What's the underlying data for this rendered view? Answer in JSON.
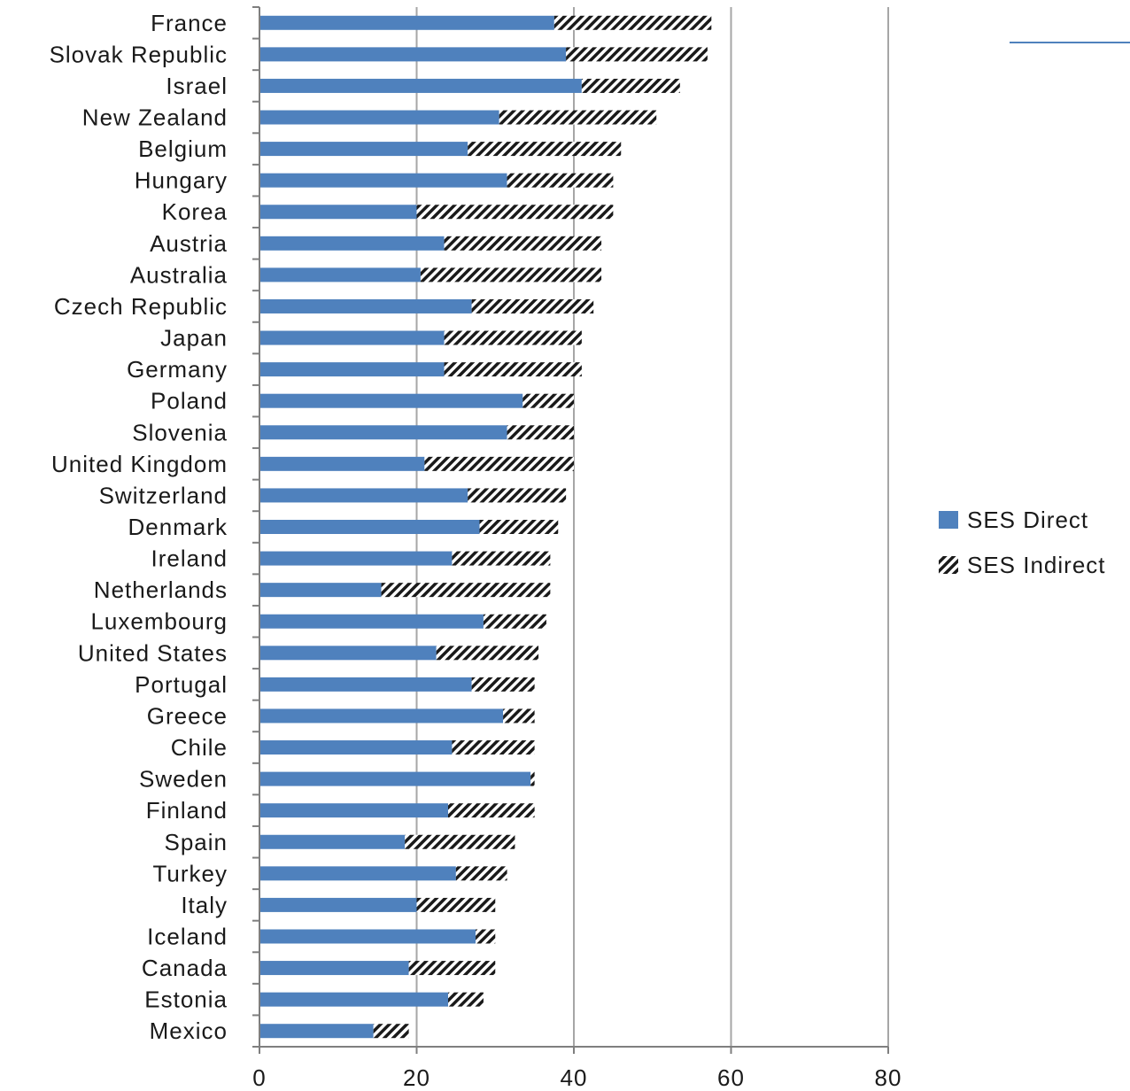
{
  "chart_data": {
    "type": "bar",
    "orientation": "horizontal",
    "stacked": true,
    "categories": [
      "France",
      "Slovak Republic",
      "Israel",
      "New Zealand",
      "Belgium",
      "Hungary",
      "Korea",
      "Austria",
      "Australia",
      "Czech Republic",
      "Japan",
      "Germany",
      "Poland",
      "Slovenia",
      "United Kingdom",
      "Switzerland",
      "Denmark",
      "Ireland",
      "Netherlands",
      "Luxembourg",
      "United States",
      "Portugal",
      "Greece",
      "Chile",
      "Sweden",
      "Finland",
      "Spain",
      "Turkey",
      "Italy",
      "Iceland",
      "Canada",
      "Estonia",
      "Mexico"
    ],
    "series": [
      {
        "name": "SES Direct",
        "color": "#4f81bd",
        "pattern": "solid",
        "values": [
          37.5,
          39.0,
          41.0,
          30.5,
          26.5,
          31.5,
          20.0,
          23.5,
          20.5,
          27.0,
          23.5,
          23.5,
          33.5,
          31.5,
          21.0,
          26.5,
          28.0,
          24.5,
          15.5,
          28.5,
          22.5,
          27.0,
          31.0,
          24.5,
          34.5,
          24.0,
          18.5,
          25.0,
          20.0,
          27.5,
          19.0,
          24.0,
          14.5
        ]
      },
      {
        "name": "SES Indirect",
        "color": "#1a1a1a",
        "pattern": "diagonal-hatch",
        "values": [
          20.0,
          18.0,
          12.5,
          20.0,
          19.5,
          13.5,
          25.0,
          20.0,
          23.0,
          15.5,
          17.5,
          17.5,
          6.5,
          8.5,
          19.0,
          12.5,
          10.0,
          12.5,
          21.5,
          8.0,
          13.0,
          8.0,
          4.0,
          10.5,
          0.5,
          11.0,
          14.0,
          6.5,
          10.0,
          2.5,
          11.0,
          4.5,
          4.5
        ]
      }
    ],
    "xlim": [
      0,
      80
    ],
    "xticks": [
      "0",
      "20",
      "40",
      "60",
      "80"
    ],
    "grid": true,
    "legend_position": "right"
  }
}
